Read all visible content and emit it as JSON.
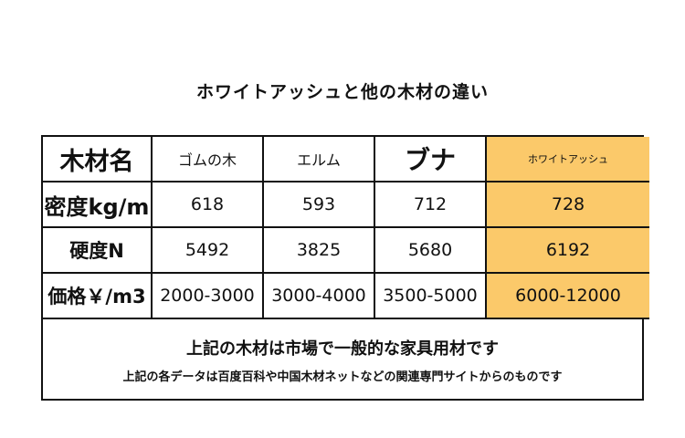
{
  "title": "ホワイトアッシュと他の木材の違い",
  "table": {
    "header": {
      "label": "木材名",
      "woods": [
        "ゴムの木",
        "エルム",
        "ブナ",
        "ホワイトアッシュ"
      ]
    },
    "rows": [
      {
        "label": "密度kg/m",
        "values": [
          "618",
          "593",
          "712",
          "728"
        ]
      },
      {
        "label": "硬度N",
        "values": [
          "5492",
          "3825",
          "5680",
          "6192"
        ]
      },
      {
        "label": "価格￥/m3",
        "values": [
          "2000-3000",
          "3000-4000",
          "3500-5000",
          "6000-12000"
        ]
      }
    ],
    "highlight_color": "#fbc96a"
  },
  "notes": {
    "line1": "上記の木材は市場で一般的な家具用材です",
    "line2": "上記の各データは百度百科や中国木材ネットなどの関連専門サイトからのものです"
  }
}
